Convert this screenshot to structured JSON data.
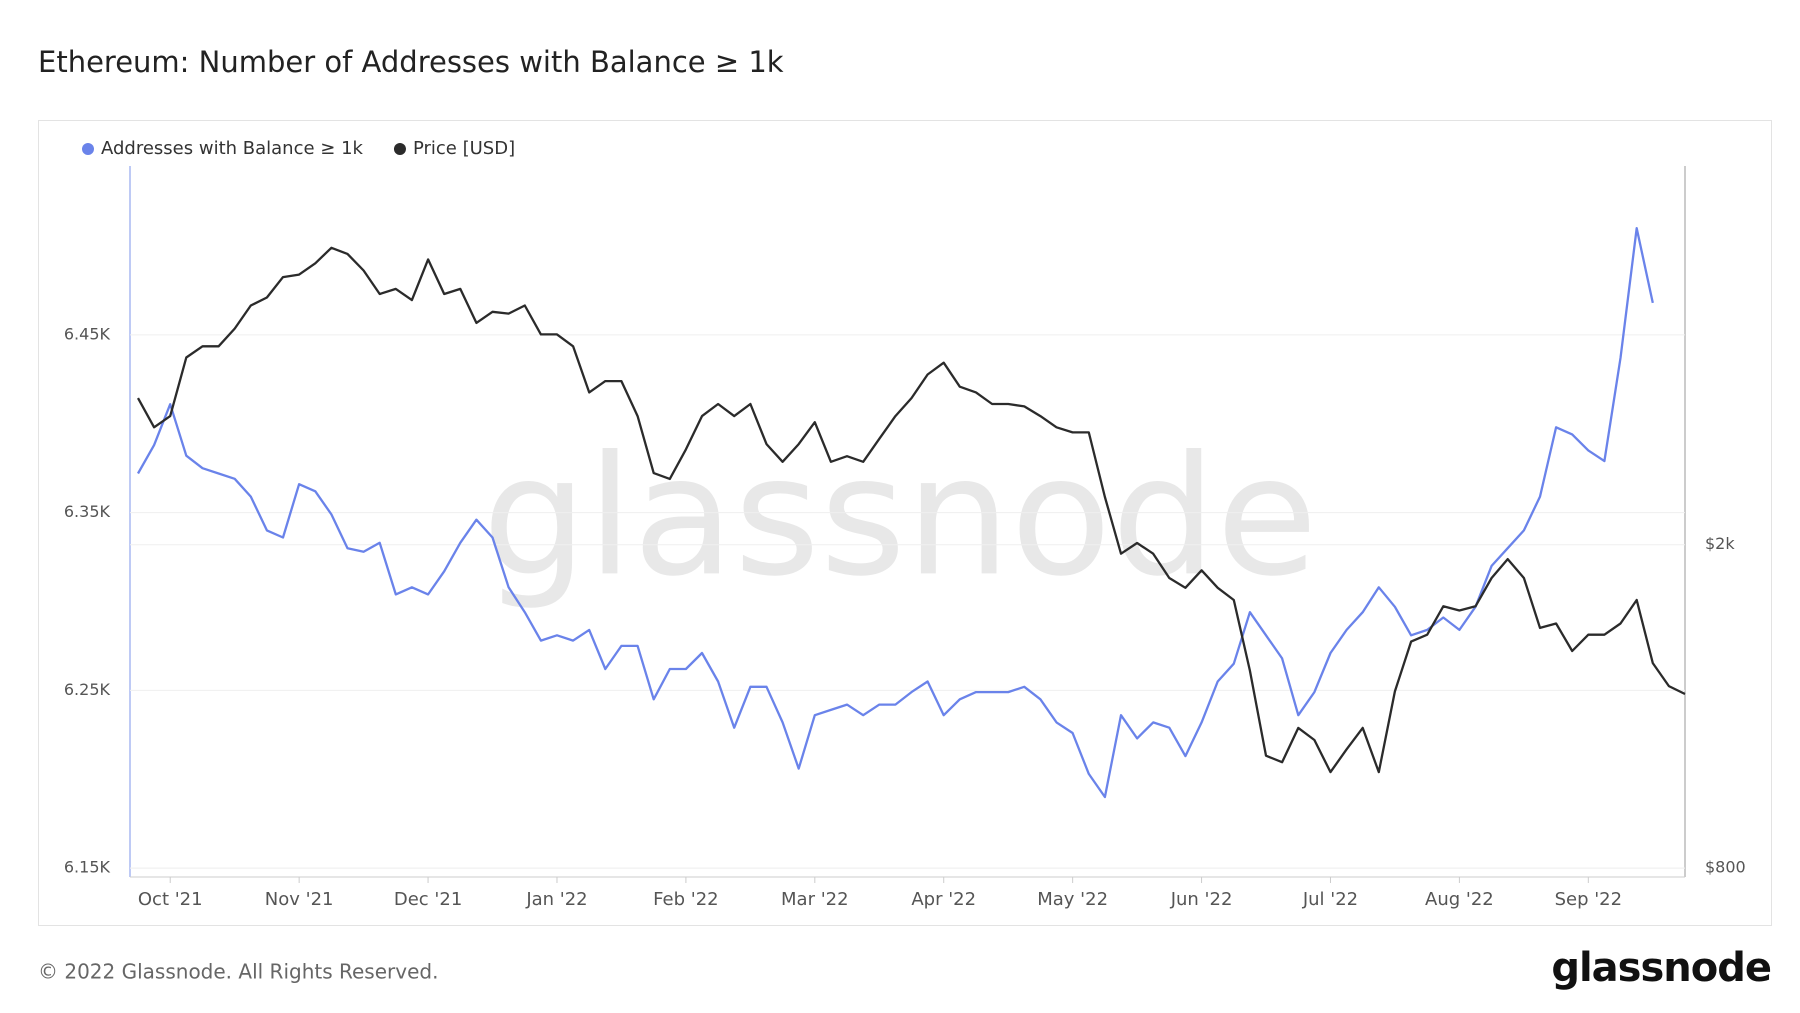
{
  "chart_data": {
    "type": "line",
    "title": "Ethereum: Number of Addresses with Balance ≥ 1k",
    "categories": [
      null,
      null,
      "Oct '21",
      null,
      null,
      null,
      null,
      null,
      null,
      null,
      "Nov '21",
      null,
      null,
      null,
      null,
      null,
      null,
      null,
      "Dec '21",
      null,
      null,
      null,
      null,
      null,
      null,
      null,
      "Jan '22",
      null,
      null,
      null,
      null,
      null,
      null,
      null,
      "Feb '22",
      null,
      null,
      null,
      null,
      null,
      null,
      null,
      "Mar '22",
      null,
      null,
      null,
      null,
      null,
      null,
      null,
      "Apr '22",
      null,
      null,
      null,
      null,
      null,
      null,
      null,
      "May '22",
      null,
      null,
      null,
      null,
      null,
      null,
      null,
      "Jun '22",
      null,
      null,
      null,
      null,
      null,
      null,
      null,
      "Jul '22",
      null,
      null,
      null,
      null,
      null,
      null,
      null,
      "Aug '22",
      null,
      null,
      null,
      null,
      null,
      null,
      null,
      "Sep '22",
      null,
      null,
      null,
      null,
      null,
      null
    ],
    "series": [
      {
        "name": "Addresses with Balance ≥ 1k",
        "color": "#6a83ea",
        "axis": "y",
        "values": [
          6372,
          6388,
          6411,
          6382,
          6375,
          6372,
          6369,
          6359,
          6340,
          6336,
          6366,
          6362,
          6349,
          6330,
          6328,
          6333,
          6304,
          6308,
          6304,
          6317,
          6333,
          6346,
          6336,
          6308,
          6294,
          6278,
          6281,
          6278,
          6284,
          6262,
          6275,
          6275,
          6245,
          6262,
          6262,
          6271,
          6255,
          6229,
          6252,
          6252,
          6232,
          6206,
          6236,
          6239,
          6242,
          6236,
          6242,
          6242,
          6249,
          6255,
          6236,
          6245,
          6249,
          6249,
          6249,
          6252,
          6245,
          6232,
          6226,
          6203,
          6190,
          6236,
          6223,
          6232,
          6229,
          6213,
          6232,
          6255,
          6265,
          6294,
          6281,
          6268,
          6236,
          6249,
          6271,
          6284,
          6294,
          6308,
          6297,
          6281,
          6284,
          6291,
          6284,
          6297,
          6320,
          6330,
          6340,
          6359,
          6398,
          6394,
          6385,
          6379,
          6437,
          6510,
          6468,
          null,
          null
        ]
      },
      {
        "name": "Price [USD]",
        "color": "#2b2b2b",
        "axis": "y2",
        "values": [
          3030,
          2790,
          2880,
          3400,
          3510,
          3510,
          3690,
          3940,
          4030,
          4270,
          4300,
          4440,
          4640,
          4560,
          4350,
          4070,
          4130,
          4000,
          4490,
          4070,
          4130,
          3750,
          3870,
          3850,
          3940,
          3630,
          3630,
          3510,
          3080,
          3180,
          3180,
          2880,
          2450,
          2410,
          2620,
          2880,
          2980,
          2880,
          2980,
          2660,
          2530,
          2660,
          2830,
          2530,
          2570,
          2530,
          2700,
          2880,
          3030,
          3240,
          3350,
          3130,
          3080,
          2980,
          2980,
          2960,
          2880,
          2790,
          2750,
          2750,
          2290,
          1950,
          2010,
          1950,
          1820,
          1770,
          1860,
          1770,
          1710,
          1400,
          1100,
          1080,
          1190,
          1150,
          1050,
          1120,
          1190,
          1050,
          1320,
          1520,
          1550,
          1680,
          1660,
          1680,
          1820,
          1920,
          1820,
          1580,
          1600,
          1480,
          1550,
          1550,
          1600,
          1710,
          1430,
          1340,
          1310
        ]
      }
    ],
    "ylim": [
      6145,
      6545
    ],
    "yticks": [
      {
        "value": 6150,
        "label": "6.15K"
      },
      {
        "value": 6250,
        "label": "6.25K"
      },
      {
        "value": 6350,
        "label": "6.35K"
      },
      {
        "value": 6450,
        "label": "6.45K"
      }
    ],
    "y2lim": [
      780,
      5850
    ],
    "y2ticks": [
      {
        "value": 800,
        "label": "$800"
      },
      {
        "value": 2000,
        "label": "$2k"
      }
    ],
    "y2_log": true,
    "grid": true,
    "legend": "top-left"
  },
  "watermark": "glassnode",
  "footer": {
    "copyright": "© 2022 Glassnode. All Rights Reserved.",
    "logo": "glassnode"
  }
}
